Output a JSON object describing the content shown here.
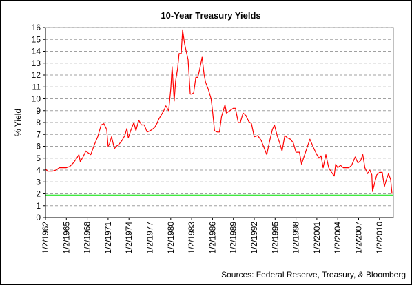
{
  "chart_data": {
    "type": "line",
    "title": "10-Year Treasury Yields",
    "xlabel": "",
    "ylabel": "% Yield",
    "source": "Sources: Federal Reserve, Treasury, & Bloomberg",
    "ylim": [
      0,
      16
    ],
    "yticks": [
      "0",
      "1",
      "2",
      "3",
      "4",
      "5",
      "6",
      "7",
      "8",
      "9",
      "10",
      "11",
      "12",
      "13",
      "14",
      "15",
      "16"
    ],
    "xlim": [
      1962.0,
      2012.0
    ],
    "xticks": [
      "1/2/1962",
      "1/2/1965",
      "1/2/1968",
      "1/2/1971",
      "1/2/1974",
      "1/2/1977",
      "1/2/1980",
      "1/2/1983",
      "1/2/1986",
      "1/2/1989",
      "1/2/1992",
      "1/2/1995",
      "1/2/1998",
      "1/2/2001",
      "1/2/2004",
      "1/2/2007",
      "1/2/2010"
    ],
    "grid": true,
    "series": [
      {
        "color": "#ff0000",
        "x": [
          1962.0,
          1962.3,
          1962.7,
          1963.0,
          1963.5,
          1964.0,
          1964.5,
          1965.0,
          1965.5,
          1966.0,
          1966.5,
          1966.8,
          1967.0,
          1967.4,
          1967.8,
          1968.0,
          1968.5,
          1969.0,
          1969.5,
          1970.0,
          1970.4,
          1970.8,
          1971.0,
          1971.2,
          1971.5,
          1971.9,
          1972.2,
          1972.6,
          1973.0,
          1973.4,
          1973.7,
          1973.9,
          1974.3,
          1974.7,
          1975.0,
          1975.4,
          1975.8,
          1976.2,
          1976.6,
          1977.0,
          1977.3,
          1977.7,
          1978.0,
          1978.3,
          1978.7,
          1979.0,
          1979.3,
          1979.7,
          1980.0,
          1980.2,
          1980.5,
          1980.7,
          1981.0,
          1981.2,
          1981.5,
          1981.7,
          1982.0,
          1982.3,
          1982.5,
          1982.8,
          1983.0,
          1983.3,
          1983.6,
          1983.9,
          1984.2,
          1984.5,
          1984.8,
          1985.0,
          1985.4,
          1985.8,
          1986.0,
          1986.3,
          1986.7,
          1987.0,
          1987.3,
          1987.8,
          1988.0,
          1988.5,
          1989.0,
          1989.3,
          1989.7,
          1990.0,
          1990.4,
          1990.8,
          1991.2,
          1991.6,
          1992.0,
          1992.5,
          1993.0,
          1993.4,
          1993.8,
          1994.2,
          1994.6,
          1994.9,
          1995.3,
          1995.7,
          1996.0,
          1996.4,
          1996.8,
          1997.2,
          1997.6,
          1998.0,
          1998.5,
          1998.8,
          1999.2,
          1999.6,
          2000.0,
          2000.5,
          2000.9,
          2001.3,
          2001.6,
          2001.9,
          2002.3,
          2002.7,
          2003.0,
          2003.5,
          2003.7,
          2004.0,
          2004.4,
          2004.8,
          2005.2,
          2005.6,
          2006.0,
          2006.5,
          2006.9,
          2007.3,
          2007.6,
          2007.9,
          2008.3,
          2008.6,
          2008.9,
          2009.0,
          2009.3,
          2009.6,
          2010.0,
          2010.4,
          2010.7,
          2011.0,
          2011.3,
          2011.6,
          2011.8
        ],
        "y": [
          4.1,
          3.9,
          3.9,
          3.9,
          4.0,
          4.2,
          4.2,
          4.2,
          4.3,
          4.6,
          5.0,
          5.3,
          4.7,
          5.1,
          5.6,
          5.5,
          5.3,
          6.1,
          6.8,
          7.8,
          7.9,
          7.4,
          6.0,
          6.2,
          6.8,
          5.8,
          6.0,
          6.2,
          6.5,
          6.9,
          7.5,
          6.7,
          7.4,
          8.0,
          7.3,
          8.2,
          7.8,
          7.8,
          7.2,
          7.3,
          7.4,
          7.6,
          7.9,
          8.3,
          8.7,
          9.0,
          9.4,
          9.0,
          10.8,
          12.7,
          9.8,
          11.5,
          12.6,
          13.8,
          13.8,
          15.8,
          14.6,
          13.8,
          13.3,
          10.4,
          10.4,
          10.5,
          11.8,
          11.8,
          12.6,
          13.5,
          12.0,
          11.4,
          10.8,
          10.0,
          9.0,
          7.3,
          7.2,
          7.2,
          8.5,
          9.5,
          8.8,
          9.0,
          9.2,
          9.2,
          8.0,
          8.0,
          8.8,
          8.6,
          8.1,
          7.9,
          6.8,
          6.9,
          6.5,
          5.9,
          5.3,
          6.4,
          7.4,
          7.8,
          6.9,
          6.2,
          5.6,
          6.9,
          6.7,
          6.6,
          6.3,
          5.5,
          5.5,
          4.5,
          5.2,
          5.9,
          6.6,
          5.9,
          5.4,
          5.0,
          5.2,
          4.2,
          5.3,
          4.2,
          3.9,
          3.5,
          4.5,
          4.2,
          4.4,
          4.2,
          4.2,
          4.2,
          4.4,
          5.1,
          4.6,
          4.8,
          5.3,
          4.2,
          3.7,
          4.0,
          3.6,
          2.2,
          2.9,
          3.6,
          3.8,
          3.8,
          2.6,
          3.2,
          3.7,
          3.2,
          2.0
        ]
      },
      {
        "color": "#00e000",
        "x": [
          1962.0,
          2012.0
        ],
        "y": [
          1.9,
          1.9
        ]
      }
    ]
  }
}
